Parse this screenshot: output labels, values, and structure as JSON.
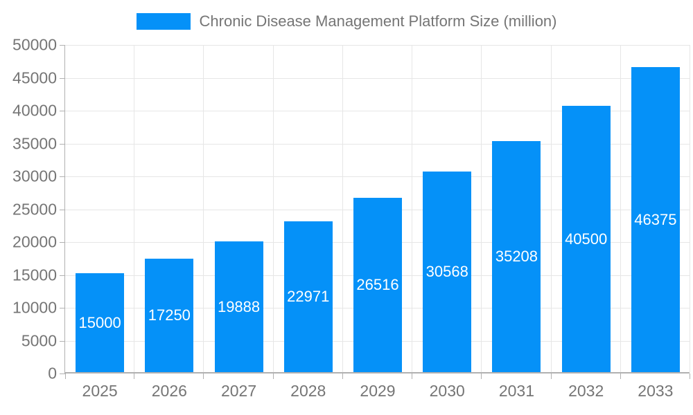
{
  "chart_data": {
    "type": "bar",
    "title": "Chronic Disease Management Platform Size (million)",
    "legend": {
      "label": "Chronic Disease Management Platform Size (million)",
      "position": "top-center"
    },
    "categories": [
      "2025",
      "2026",
      "2027",
      "2028",
      "2029",
      "2030",
      "2031",
      "2032",
      "2033"
    ],
    "values": [
      15000,
      17250,
      19888,
      22971,
      26516,
      30568,
      35208,
      40500,
      46375
    ],
    "xlabel": "",
    "ylabel": "",
    "ylim": [
      0,
      50000
    ],
    "ytick_step": 5000,
    "ytick_labels": [
      "0",
      "5000",
      "10000",
      "15000",
      "20000",
      "25000",
      "30000",
      "35000",
      "40000",
      "45000",
      "50000"
    ],
    "grid": true,
    "value_labels_inside_bars": true,
    "colors": {
      "bar": "#0591f8",
      "bar_label_text": "#ffffff",
      "axis_line": "#b0b0b0",
      "gridline": "#e6e6e6",
      "tick_text": "#757575",
      "legend_text": "#757575",
      "background": "#ffffff"
    }
  }
}
